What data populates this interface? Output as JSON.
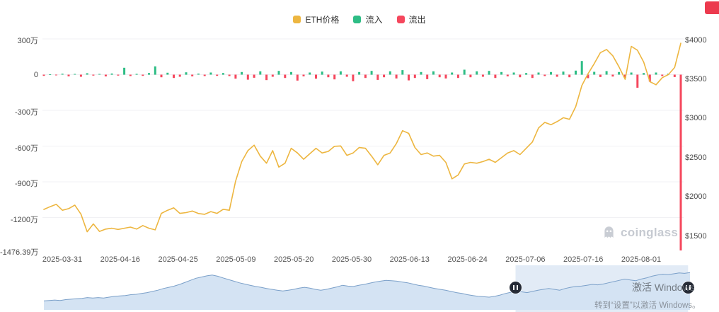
{
  "page": {
    "background": "#ffffff"
  },
  "legend": {
    "items": [
      {
        "label": "ETH价格",
        "color": "#EDB640"
      },
      {
        "label": "流入",
        "color": "#2EBD85"
      },
      {
        "label": "流出",
        "color": "#F5475D"
      }
    ]
  },
  "watermark": {
    "brand": "coinglass",
    "color": "#C6CAD1"
  },
  "overlay": {
    "activation_line1": "激活 Windows",
    "activation_line2": "转到“设置”以激活 Windows。",
    "badge_color": "#EC3A4E"
  },
  "chart_data": {
    "type": "mixed",
    "title": "",
    "x_ticks": [
      "2025-03-31",
      "2025-04-16",
      "2025-04-25",
      "2025-05-09",
      "2025-05-20",
      "2025-05-30",
      "2025-06-13",
      "2025-06-24",
      "2025-07-06",
      "2025-07-16",
      "2025-08-01"
    ],
    "left_axis": {
      "unit": "万",
      "max": 330,
      "min": -1494,
      "ticks": [
        {
          "label": "300万",
          "value": 300
        },
        {
          "label": "0",
          "value": 0
        },
        {
          "label": "-300万",
          "value": -300
        },
        {
          "label": "-600万",
          "value": -600
        },
        {
          "label": "-900万",
          "value": -900
        },
        {
          "label": "-1200万",
          "value": -1200
        },
        {
          "label": "-1476.39万",
          "value": -1476.39
        }
      ]
    },
    "right_axis": {
      "unit": "$",
      "max": 4060,
      "min": 1290,
      "ticks": [
        {
          "label": "$4000",
          "value": 4000
        },
        {
          "label": "$3500",
          "value": 3500
        },
        {
          "label": "$3000",
          "value": 3000
        },
        {
          "label": "$2500",
          "value": 2500
        },
        {
          "label": "$2000",
          "value": 2000
        },
        {
          "label": "$1500",
          "value": 1500
        }
      ]
    },
    "series": [
      {
        "name": "ETH价格",
        "type": "line",
        "axis": "right",
        "color": "#EDB640",
        "values": [
          1840,
          1875,
          1905,
          1830,
          1850,
          1895,
          1780,
          1555,
          1655,
          1560,
          1590,
          1600,
          1585,
          1600,
          1615,
          1590,
          1635,
          1600,
          1580,
          1790,
          1830,
          1860,
          1790,
          1800,
          1820,
          1788,
          1778,
          1812,
          1790,
          1842,
          1830,
          2200,
          2450,
          2590,
          2660,
          2520,
          2430,
          2590,
          2380,
          2430,
          2620,
          2560,
          2480,
          2550,
          2620,
          2560,
          2580,
          2645,
          2650,
          2530,
          2560,
          2630,
          2620,
          2520,
          2410,
          2530,
          2560,
          2680,
          2845,
          2810,
          2630,
          2540,
          2560,
          2520,
          2530,
          2440,
          2230,
          2280,
          2420,
          2440,
          2430,
          2450,
          2480,
          2440,
          2500,
          2560,
          2590,
          2540,
          2620,
          2700,
          2880,
          2950,
          2920,
          2960,
          3010,
          2990,
          3150,
          3420,
          3570,
          3700,
          3840,
          3880,
          3800,
          3660,
          3500,
          3920,
          3870,
          3720,
          3470,
          3430,
          3520,
          3560,
          3650,
          3960
        ]
      },
      {
        "name": "流入/流出",
        "type": "bar",
        "axis": "left",
        "positive_color": "#2EBD85",
        "negative_color": "#F5475D",
        "values": [
          -10,
          4,
          -6,
          8,
          -14,
          6,
          -18,
          12,
          -8,
          6,
          -15,
          10,
          -8,
          58,
          -12,
          7,
          -10,
          14,
          70,
          -22,
          16,
          -28,
          -18,
          20,
          -14,
          9,
          -12,
          18,
          -10,
          14,
          -12,
          -34,
          22,
          -42,
          -26,
          28,
          -46,
          -18,
          32,
          -28,
          22,
          -50,
          -14,
          18,
          -34,
          26,
          -22,
          -40,
          28,
          -18,
          -55,
          22,
          -28,
          32,
          -44,
          -22,
          28,
          -32,
          38,
          -48,
          -28,
          22,
          -38,
          28,
          -22,
          -32,
          18,
          -28,
          42,
          -22,
          28,
          -18,
          32,
          -28,
          22,
          -14,
          18,
          -22,
          14,
          -28,
          18,
          -12,
          22,
          -18,
          26,
          -22,
          34,
          115,
          -30,
          24,
          -20,
          30,
          -16,
          22,
          -26,
          18,
          -110,
          14,
          -58,
          18,
          -12,
          9,
          -20,
          -1476.39
        ]
      }
    ],
    "navigator": {
      "values": [
        22,
        23,
        24,
        23,
        25,
        26,
        27,
        28,
        30,
        29,
        30,
        29,
        31,
        33,
        34,
        35,
        37,
        38,
        40,
        42,
        45,
        48,
        52,
        55,
        58,
        62,
        67,
        72,
        77,
        80,
        83,
        85,
        82,
        78,
        74,
        70,
        66,
        63,
        60,
        57,
        55,
        52,
        50,
        48,
        46,
        48,
        50,
        53,
        55,
        53,
        50,
        48,
        50,
        53,
        56,
        60,
        58,
        57,
        60,
        62,
        65,
        68,
        70,
        72,
        71,
        70,
        68,
        66,
        63,
        60,
        58,
        55,
        52,
        50,
        48,
        45,
        42,
        40,
        37,
        35,
        33,
        32,
        31,
        33,
        36,
        40,
        43,
        45,
        44,
        42,
        45,
        48,
        50,
        52,
        50,
        48,
        52,
        55,
        57,
        58,
        60,
        62,
        61,
        63,
        66,
        69,
        72,
        75,
        73,
        71,
        75,
        78,
        82,
        85,
        87,
        86,
        88,
        90,
        89,
        91
      ],
      "selected_range": [
        0.73,
        0.997
      ],
      "line_color": "#7BA0C9",
      "fill_color": "#D4E3F3",
      "selection_color": "rgba(125,165,215,0.22)",
      "handle_color": "#262B36"
    }
  }
}
